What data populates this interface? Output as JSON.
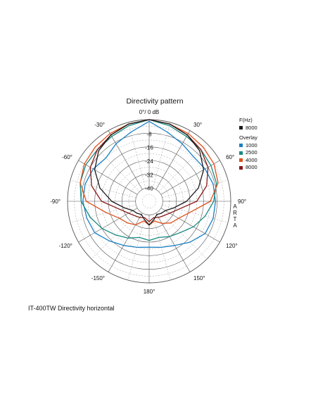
{
  "chart_data": {
    "type": "polar",
    "title": "Directivity pattern",
    "caption": "IT-400TW Directivity horizontal",
    "angle_labels": [
      "0°/ 0 dB",
      "30°",
      "60°",
      "90°",
      "120°",
      "150°",
      "180°",
      "-150°",
      "-120°",
      "-90°",
      "-60°",
      "-30°"
    ],
    "radial_labels": [
      "-8",
      "-16",
      "-24",
      "-32",
      "-40"
    ],
    "r_range_db": [
      -48,
      0
    ],
    "legend_header": "F(Hz)",
    "main_freq": "8000",
    "overlay_header": "Overlay",
    "side_text": "ARTA",
    "series": [
      {
        "name": "8000",
        "color": "#1a1a1a",
        "angles": [
          0,
          15,
          30,
          45,
          60,
          75,
          90,
          105,
          120,
          135,
          150,
          165,
          180,
          -165,
          -150,
          -135,
          -120,
          -105,
          -90,
          -75,
          -60,
          -45,
          -30,
          -15
        ],
        "values": [
          0,
          -1,
          -3,
          -6,
          -11,
          -18,
          -26,
          -33,
          -37,
          -38,
          -39,
          -37,
          -34,
          -37,
          -39,
          -38,
          -37,
          -33,
          -26,
          -18,
          -11,
          -6,
          -3,
          -1
        ]
      },
      {
        "name": "1000",
        "color": "#1a7fc4",
        "angles": [
          0,
          15,
          30,
          45,
          60,
          75,
          90,
          105,
          120,
          135,
          150,
          165,
          180,
          -165,
          -150,
          -135,
          -120,
          -105,
          -90,
          -75,
          -60,
          -45,
          -30,
          -15
        ],
        "values": [
          -1,
          -6,
          -9,
          -11,
          -10,
          -9,
          -9,
          -9,
          -10,
          -14,
          -18,
          -20,
          -21,
          -20,
          -18,
          -15,
          -11,
          -10,
          -9,
          -9,
          -10,
          -12,
          -9,
          -6
        ]
      },
      {
        "name": "2500",
        "color": "#178a80",
        "angles": [
          0,
          15,
          30,
          45,
          60,
          75,
          90,
          105,
          120,
          135,
          150,
          165,
          180,
          -165,
          -150,
          -135,
          -120,
          -105,
          -90,
          -75,
          -60,
          -45,
          -30,
          -15
        ],
        "values": [
          0,
          -2,
          -4,
          -5,
          -6,
          -7,
          -10,
          -14,
          -18,
          -22,
          -24,
          -26,
          -25,
          -26,
          -23,
          -20,
          -16,
          -12,
          -8,
          -6,
          -5,
          -5,
          -4,
          -2
        ]
      },
      {
        "name": "4000",
        "color": "#e0501c",
        "angles": [
          0,
          15,
          30,
          45,
          60,
          75,
          90,
          105,
          120,
          135,
          150,
          165,
          180,
          -165,
          -150,
          -135,
          -120,
          -105,
          -90,
          -75,
          -60,
          -45,
          -30,
          -15
        ],
        "values": [
          0,
          -1,
          -2,
          -3,
          -4,
          -6,
          -12,
          -23,
          -28,
          -30,
          -33,
          -36,
          -34,
          -36,
          -32,
          -30,
          -28,
          -22,
          -11,
          -6,
          -4,
          -3,
          -2,
          -1
        ]
      },
      {
        "name": "8000",
        "color": "#8a1a1a",
        "angles": [
          0,
          15,
          30,
          45,
          60,
          75,
          90,
          105,
          120,
          135,
          150,
          165,
          180,
          -165,
          -150,
          -135,
          -120,
          -105,
          -90,
          -75,
          -60,
          -45,
          -30,
          -15
        ],
        "values": [
          0,
          -1,
          -3,
          -5,
          -8,
          -13,
          -20,
          -30,
          -34,
          -36,
          -37,
          -38,
          -36,
          -38,
          -37,
          -36,
          -34,
          -30,
          -20,
          -13,
          -8,
          -5,
          -3,
          -1
        ]
      }
    ]
  }
}
